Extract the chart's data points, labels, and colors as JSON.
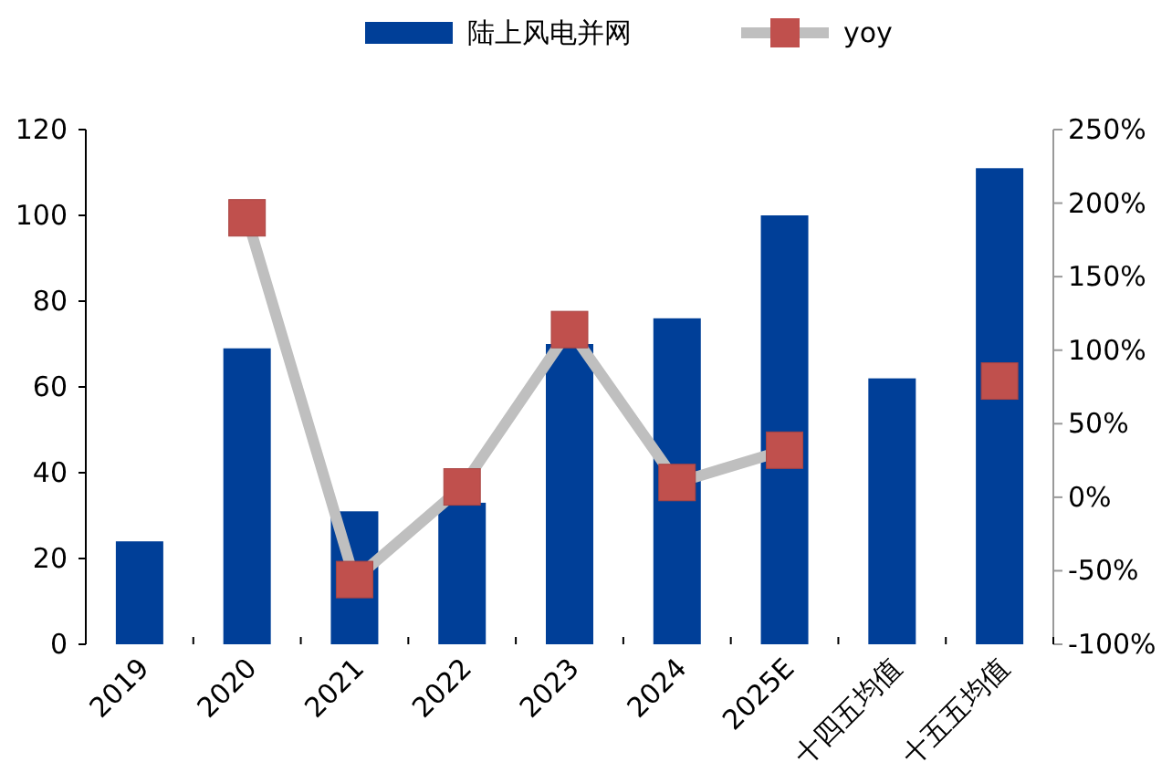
{
  "chart_data": {
    "type": "bar",
    "categories": [
      "2019",
      "2020",
      "2021",
      "2022",
      "2023",
      "2024",
      "2025E",
      "十四五均值",
      "十五五均值"
    ],
    "series": [
      {
        "name": "陆上风电并网",
        "color": "#003f98",
        "values": [
          24,
          69,
          31,
          33,
          70,
          76,
          100,
          62,
          111
        ]
      },
      {
        "name": "yoy",
        "type": "line",
        "axis": "y2",
        "color": "#c0504d",
        "marker": "square",
        "values": [
          null,
          190,
          -56,
          7,
          114,
          10,
          32,
          null,
          79
        ]
      }
    ],
    "ylim": [
      0,
      120
    ],
    "yticks": [
      0,
      20,
      40,
      60,
      80,
      100,
      120
    ],
    "y2lim": [
      -100,
      250
    ],
    "y2ticks": [
      {
        "value": -100,
        "label": "-100%"
      },
      {
        "value": -50,
        "label": "-50%"
      },
      {
        "value": 0,
        "label": "0%"
      },
      {
        "value": 50,
        "label": "50%"
      },
      {
        "value": 100,
        "label": "100%"
      },
      {
        "value": 150,
        "label": "150%"
      },
      {
        "value": 200,
        "label": "200%"
      },
      {
        "value": 250,
        "label": "250%"
      }
    ],
    "grid": false,
    "legend": "top"
  }
}
